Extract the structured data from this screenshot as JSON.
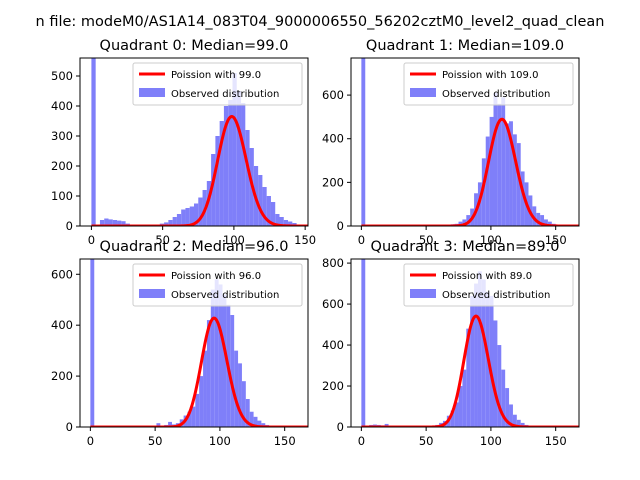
{
  "figure_title": "n file: modeM0/AS1A14_083T04_9000006550_56202cztM0_level2_quad_clean",
  "colors": {
    "hist": "#7f7ff9",
    "fit": "#ff0000",
    "axis": "#000000"
  },
  "chart_data": [
    {
      "type": "bar",
      "title": "Quadrant 0: Median=99.0",
      "xlim": [
        -8,
        152
      ],
      "ylim": [
        0,
        560
      ],
      "xticks": [
        0,
        50,
        100,
        150
      ],
      "xtick_labels": [
        "0",
        "50",
        "100",
        "150"
      ],
      "yticks": [
        0,
        100,
        200,
        300,
        400,
        500
      ],
      "ytick_labels": [
        "0",
        "100",
        "200",
        "300",
        "400",
        "500"
      ],
      "fit_label": "Poission with 99.0",
      "hist_label": "Observed distribution",
      "poisson_mean": 99.0,
      "fit_scale": 9100,
      "bin_width": 3,
      "bins": [
        0,
        3,
        6,
        9,
        12,
        15,
        18,
        21,
        24,
        27,
        30,
        33,
        36,
        39,
        42,
        45,
        48,
        51,
        54,
        57,
        60,
        63,
        66,
        69,
        72,
        75,
        78,
        81,
        84,
        87,
        90,
        93,
        96,
        99,
        102,
        105,
        108,
        111,
        114,
        117,
        120,
        123,
        126,
        129,
        132,
        135,
        138,
        141
      ],
      "counts": [
        560,
        0,
        20,
        25,
        22,
        20,
        18,
        16,
        8,
        5,
        3,
        2,
        2,
        1,
        3,
        5,
        8,
        12,
        20,
        30,
        40,
        55,
        60,
        65,
        75,
        95,
        120,
        150,
        240,
        300,
        350,
        400,
        420,
        510,
        450,
        410,
        320,
        260,
        200,
        170,
        130,
        100,
        80,
        40,
        30,
        20,
        15,
        10
      ]
    },
    {
      "type": "bar",
      "title": "Quadrant 1: Median=109.0",
      "xlim": [
        -8,
        168
      ],
      "ylim": [
        0,
        770
      ],
      "xticks": [
        0,
        50,
        100,
        150
      ],
      "xtick_labels": [
        "0",
        "50",
        "100",
        "150"
      ],
      "yticks": [
        0,
        200,
        400,
        600
      ],
      "ytick_labels": [
        "0",
        "200",
        "400",
        "600"
      ],
      "fit_label": "Poission with 109.0",
      "hist_label": "Observed distribution",
      "poisson_mean": 109.0,
      "fit_scale": 12800,
      "bin_width": 3,
      "bins": [
        0,
        3,
        6,
        9,
        12,
        15,
        18,
        21,
        24,
        27,
        30,
        33,
        36,
        39,
        42,
        45,
        48,
        51,
        54,
        57,
        60,
        63,
        66,
        69,
        72,
        75,
        78,
        81,
        84,
        87,
        90,
        93,
        96,
        99,
        102,
        105,
        108,
        111,
        114,
        117,
        120,
        123,
        126,
        129,
        132,
        135,
        138,
        141,
        144,
        147,
        150,
        153,
        156,
        159,
        162
      ],
      "counts": [
        770,
        0,
        4,
        6,
        5,
        3,
        3,
        2,
        2,
        1,
        1,
        1,
        0,
        0,
        0,
        0,
        0,
        0,
        0,
        0,
        2,
        3,
        5,
        8,
        10,
        20,
        30,
        50,
        80,
        150,
        200,
        310,
        410,
        500,
        610,
        560,
        590,
        470,
        480,
        420,
        380,
        250,
        200,
        140,
        90,
        60,
        50,
        30,
        20,
        10,
        5,
        3,
        2,
        1,
        1
      ]
    },
    {
      "type": "bar",
      "title": "Quadrant 2: Median=96.0",
      "xlim": [
        -8,
        168
      ],
      "ylim": [
        0,
        660
      ],
      "xticks": [
        0,
        50,
        100,
        150
      ],
      "xtick_labels": [
        "0",
        "50",
        "100",
        "150"
      ],
      "yticks": [
        0,
        200,
        400,
        600
      ],
      "ytick_labels": [
        "0",
        "200",
        "400",
        "600"
      ],
      "fit_label": "Poission with 96.0",
      "hist_label": "Observed distribution",
      "poisson_mean": 96.0,
      "fit_scale": 10500,
      "bin_width": 3,
      "bins": [
        0,
        3,
        6,
        9,
        12,
        15,
        18,
        21,
        24,
        27,
        30,
        33,
        36,
        39,
        42,
        45,
        48,
        51,
        54,
        57,
        60,
        63,
        66,
        69,
        72,
        75,
        78,
        81,
        84,
        87,
        90,
        93,
        96,
        99,
        102,
        105,
        108,
        111,
        114,
        117,
        120,
        123,
        126,
        129,
        132,
        135,
        138,
        141,
        144,
        147,
        150,
        153,
        156,
        159
      ],
      "counts": [
        660,
        0,
        2,
        2,
        1,
        1,
        1,
        0,
        0,
        0,
        0,
        0,
        0,
        0,
        0,
        0,
        1,
        15,
        5,
        8,
        20,
        10,
        15,
        30,
        45,
        60,
        80,
        130,
        200,
        300,
        420,
        540,
        580,
        560,
        520,
        480,
        440,
        300,
        250,
        180,
        110,
        60,
        40,
        25,
        15,
        8,
        5,
        3,
        2,
        1,
        1,
        0,
        0,
        0
      ]
    },
    {
      "type": "bar",
      "title": "Quadrant 3: Median=89.0",
      "xlim": [
        -8,
        168
      ],
      "ylim": [
        0,
        820
      ],
      "xticks": [
        0,
        50,
        100,
        150
      ],
      "xtick_labels": [
        "0",
        "50",
        "100",
        "150"
      ],
      "yticks": [
        0,
        200,
        400,
        600,
        800
      ],
      "ytick_labels": [
        "0",
        "200",
        "400",
        "600",
        "800"
      ],
      "fit_label": "Poission with 89.0",
      "hist_label": "Observed distribution",
      "poisson_mean": 89.0,
      "fit_scale": 12800,
      "bin_width": 3,
      "bins": [
        0,
        3,
        6,
        9,
        12,
        15,
        18,
        21,
        24,
        27,
        30,
        33,
        36,
        39,
        42,
        45,
        48,
        51,
        54,
        57,
        60,
        63,
        66,
        69,
        72,
        75,
        78,
        81,
        84,
        87,
        90,
        93,
        96,
        99,
        102,
        105,
        108,
        111,
        114,
        117,
        120,
        123,
        126,
        129,
        132,
        135,
        138,
        141,
        144,
        147,
        150,
        153,
        156,
        159
      ],
      "counts": [
        820,
        0,
        10,
        12,
        10,
        8,
        15,
        6,
        5,
        3,
        2,
        2,
        1,
        1,
        1,
        1,
        2,
        3,
        5,
        10,
        20,
        30,
        55,
        80,
        120,
        200,
        280,
        480,
        640,
        700,
        760,
        720,
        660,
        640,
        520,
        400,
        280,
        190,
        110,
        60,
        35,
        20,
        10,
        5,
        3,
        2,
        1,
        1,
        0,
        0,
        0,
        0,
        0,
        0
      ]
    }
  ]
}
